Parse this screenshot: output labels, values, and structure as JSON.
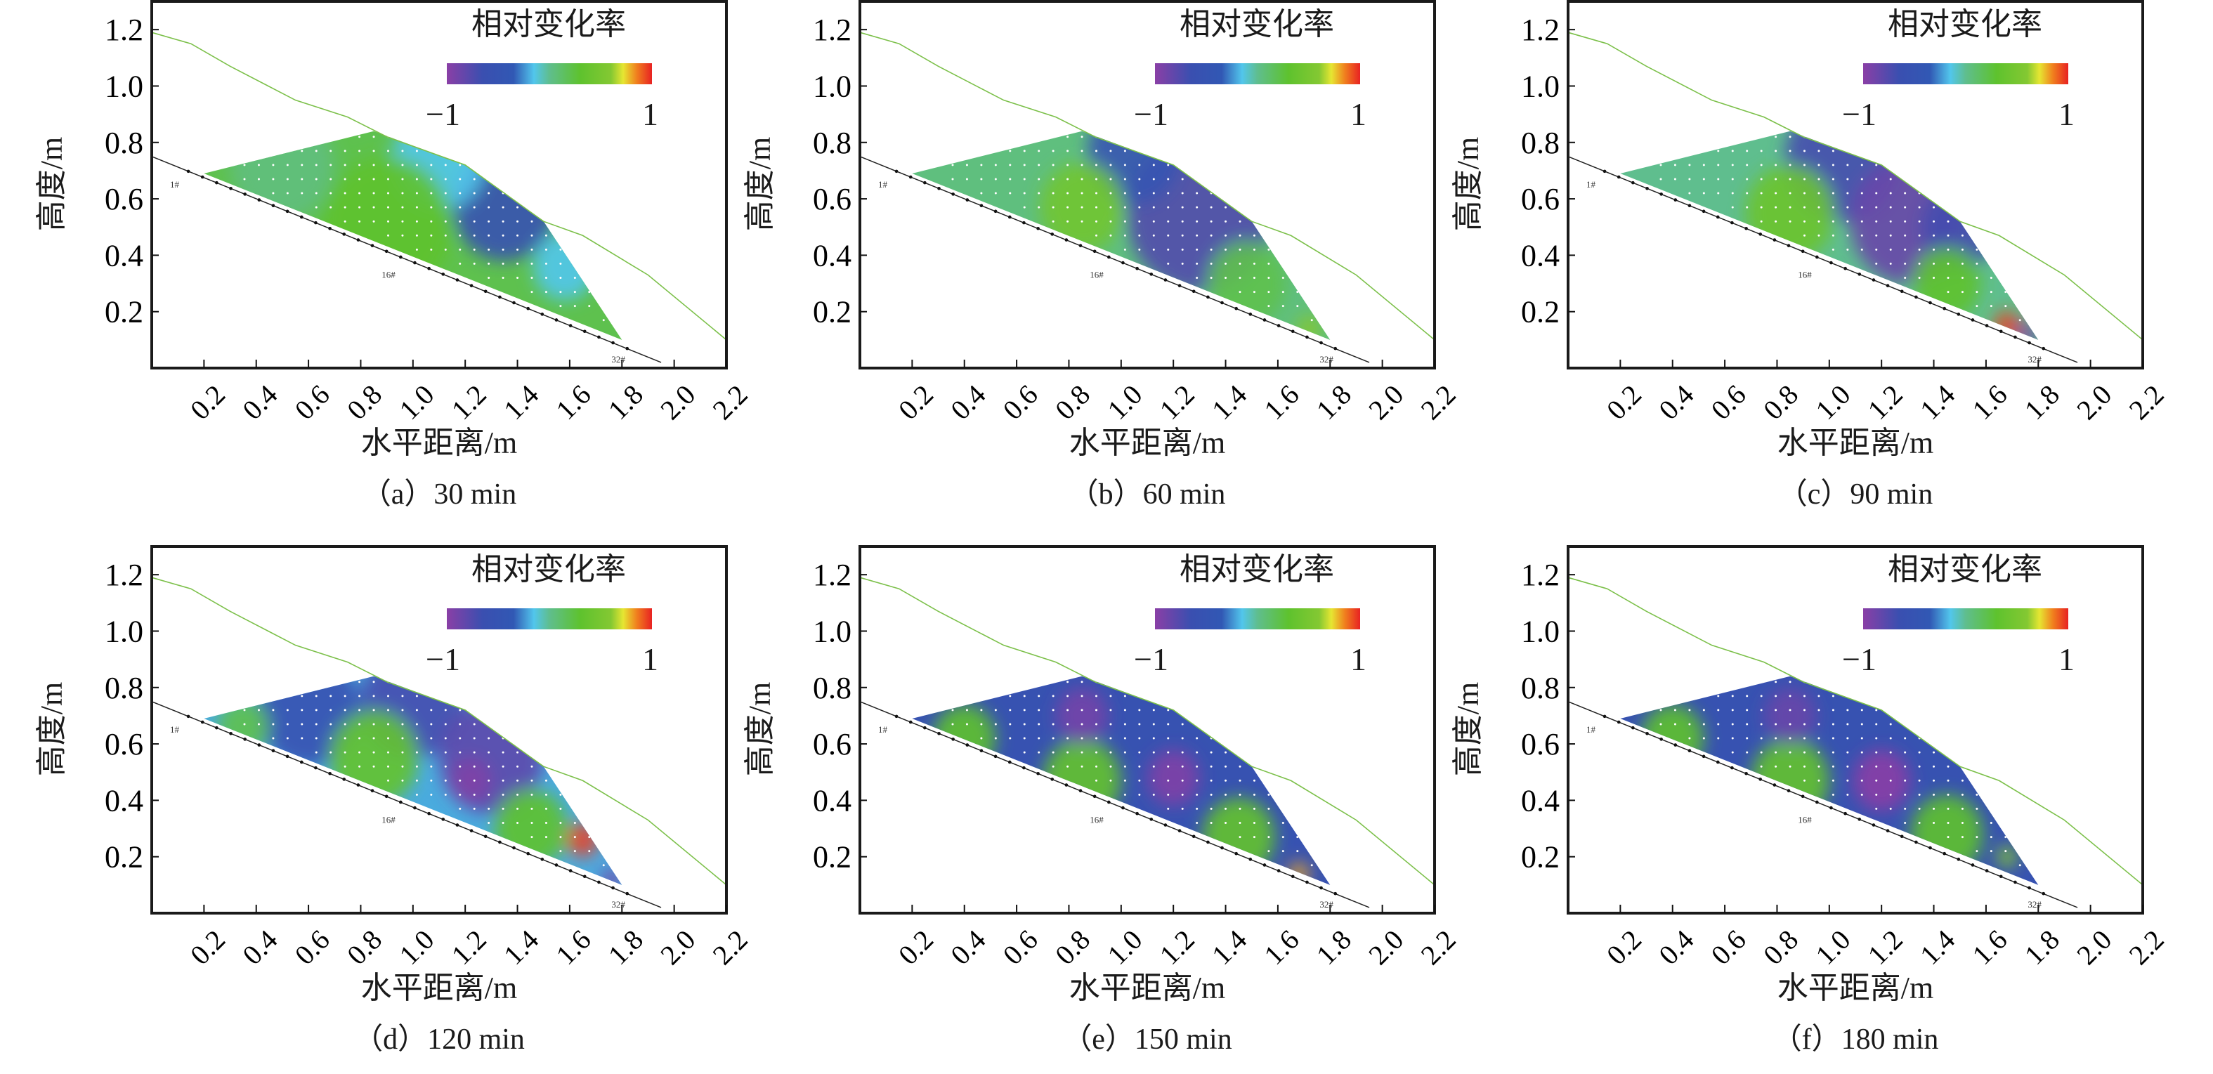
{
  "colorbar": {
    "title": "相对变化率",
    "min_label": "−1",
    "max_label": "1",
    "min": -1,
    "max": 1,
    "stops": [
      [
        -1,
        "#8a3fa6"
      ],
      [
        -0.65,
        "#3a4fb0"
      ],
      [
        -0.35,
        "#3158b4"
      ],
      [
        -0.15,
        "#52c6ec"
      ],
      [
        0.0,
        "#5fbe8e"
      ],
      [
        0.3,
        "#5ec22e"
      ],
      [
        0.6,
        "#84c832"
      ],
      [
        0.72,
        "#e6e632"
      ],
      [
        0.85,
        "#f0801e"
      ],
      [
        1,
        "#e82222"
      ]
    ]
  },
  "colors": {
    "ground_line": "#7cc04a",
    "base_line": "#222222",
    "frame": "#1a1a1a"
  },
  "chart_data": [
    {
      "type": "heatmap",
      "caption": "（a）30 min",
      "xlabel": "水平距离/m",
      "ylabel": "高度/m",
      "xlim": [
        0,
        2.2
      ],
      "ylim": [
        0,
        1.3
      ],
      "xticks": [
        "0.2",
        "0.4",
        "0.6",
        "0.8",
        "1.0",
        "1.2",
        "1.4",
        "1.6",
        "1.8",
        "2.0",
        "2.2"
      ],
      "yticks": [
        "0.2",
        "0.4",
        "0.6",
        "0.8",
        "1.0",
        "1.2"
      ],
      "point_labels": [
        "1#",
        "16#",
        "32#"
      ],
      "base_value": 0.2,
      "field": [
        {
          "x": 1.35,
          "y": 0.58,
          "v": -0.6,
          "r": 0.2
        },
        {
          "x": 1.1,
          "y": 0.74,
          "v": -0.15,
          "r": 0.18
        },
        {
          "x": 1.58,
          "y": 0.36,
          "v": -0.15,
          "r": 0.12
        },
        {
          "x": 0.9,
          "y": 0.5,
          "v": 0.3,
          "r": 0.25
        },
        {
          "x": 0.5,
          "y": 0.72,
          "v": 0.05,
          "r": 0.2
        }
      ]
    },
    {
      "type": "heatmap",
      "caption": "（b）60 min",
      "xlabel": "水平距离/m",
      "ylabel": "高度/m",
      "xlim": [
        0,
        2.2
      ],
      "ylim": [
        0,
        1.3
      ],
      "xticks": [
        "0.2",
        "0.4",
        "0.6",
        "0.8",
        "1.0",
        "1.2",
        "1.4",
        "1.6",
        "1.8",
        "2.0",
        "2.2"
      ],
      "yticks": [
        "0.2",
        "0.4",
        "0.6",
        "0.8",
        "1.0",
        "1.2"
      ],
      "point_labels": [
        "1#",
        "16#",
        "32#"
      ],
      "base_value": 0.05,
      "field": [
        {
          "x": 1.3,
          "y": 0.55,
          "v": -0.75,
          "r": 0.28
        },
        {
          "x": 1.05,
          "y": 0.76,
          "v": -0.5,
          "r": 0.18
        },
        {
          "x": 0.85,
          "y": 0.57,
          "v": 0.45,
          "r": 0.16
        },
        {
          "x": 1.48,
          "y": 0.3,
          "v": 0.2,
          "r": 0.15
        },
        {
          "x": 1.72,
          "y": 0.14,
          "v": 0.6,
          "r": 0.05
        }
      ]
    },
    {
      "type": "heatmap",
      "caption": "（c）90 min",
      "xlabel": "水平距离/m",
      "ylabel": "高度/m",
      "xlim": [
        0,
        2.2
      ],
      "ylim": [
        0,
        1.3
      ],
      "xticks": [
        "0.2",
        "0.4",
        "0.6",
        "0.8",
        "1.0",
        "1.2",
        "1.4",
        "1.6",
        "1.8",
        "2.0",
        "2.2"
      ],
      "yticks": [
        "0.2",
        "0.4",
        "0.6",
        "0.8",
        "1.0",
        "1.2"
      ],
      "point_labels": [
        "1#",
        "16#",
        "32#"
      ],
      "base_value": 0.0,
      "field": [
        {
          "x": 1.05,
          "y": 0.74,
          "v": -0.7,
          "r": 0.22
        },
        {
          "x": 1.3,
          "y": 0.52,
          "v": -0.85,
          "r": 0.22
        },
        {
          "x": 1.5,
          "y": 0.5,
          "v": -0.7,
          "r": 0.15
        },
        {
          "x": 0.85,
          "y": 0.55,
          "v": 0.4,
          "r": 0.17
        },
        {
          "x": 1.45,
          "y": 0.3,
          "v": 0.3,
          "r": 0.13
        },
        {
          "x": 1.68,
          "y": 0.15,
          "v": 0.95,
          "r": 0.05
        },
        {
          "x": 1.76,
          "y": 0.12,
          "v": -0.9,
          "r": 0.04
        }
      ]
    },
    {
      "type": "heatmap",
      "caption": "（d）120 min",
      "xlabel": "水平距离/m",
      "ylabel": "高度/m",
      "xlim": [
        0,
        2.2
      ],
      "ylim": [
        0,
        1.3
      ],
      "xticks": [
        "0.2",
        "0.4",
        "0.6",
        "0.8",
        "1.0",
        "1.2",
        "1.4",
        "1.6",
        "1.8",
        "2.0",
        "2.2"
      ],
      "yticks": [
        "0.2",
        "0.4",
        "0.6",
        "0.8",
        "1.0",
        "1.2"
      ],
      "point_labels": [
        "1#",
        "16#",
        "32#"
      ],
      "base_value": -0.2,
      "field": [
        {
          "x": 0.6,
          "y": 0.72,
          "v": -0.6,
          "r": 0.2
        },
        {
          "x": 1.0,
          "y": 0.75,
          "v": -0.7,
          "r": 0.2
        },
        {
          "x": 1.3,
          "y": 0.55,
          "v": -0.8,
          "r": 0.2
        },
        {
          "x": 1.22,
          "y": 0.47,
          "v": -0.95,
          "r": 0.08
        },
        {
          "x": 0.85,
          "y": 0.55,
          "v": 0.35,
          "r": 0.17
        },
        {
          "x": 0.35,
          "y": 0.66,
          "v": 0.2,
          "r": 0.1
        },
        {
          "x": 1.45,
          "y": 0.3,
          "v": 0.3,
          "r": 0.14
        },
        {
          "x": 1.65,
          "y": 0.26,
          "v": 0.95,
          "r": 0.06
        },
        {
          "x": 1.76,
          "y": 0.12,
          "v": -0.9,
          "r": 0.04
        }
      ]
    },
    {
      "type": "heatmap",
      "caption": "（e）150 min",
      "xlabel": "水平距离/m",
      "ylabel": "高度/m",
      "xlim": [
        0,
        2.2
      ],
      "ylim": [
        0,
        1.3
      ],
      "xticks": [
        "0.2",
        "0.4",
        "0.6",
        "0.8",
        "1.0",
        "1.2",
        "1.4",
        "1.6",
        "1.8",
        "2.0",
        "2.2"
      ],
      "yticks": [
        "0.2",
        "0.4",
        "0.6",
        "0.8",
        "1.0",
        "1.2"
      ],
      "point_labels": [
        "1#",
        "16#",
        "32#"
      ],
      "base_value": -0.55,
      "field": [
        {
          "x": 0.4,
          "y": 0.62,
          "v": 0.3,
          "r": 0.12
        },
        {
          "x": 0.85,
          "y": 0.47,
          "v": 0.35,
          "r": 0.15
        },
        {
          "x": 1.45,
          "y": 0.27,
          "v": 0.35,
          "r": 0.14
        },
        {
          "x": 0.85,
          "y": 0.7,
          "v": -0.9,
          "r": 0.1
        },
        {
          "x": 1.2,
          "y": 0.48,
          "v": -0.95,
          "r": 0.1
        },
        {
          "x": 1.68,
          "y": 0.14,
          "v": 0.8,
          "r": 0.04
        }
      ]
    },
    {
      "type": "heatmap",
      "caption": "（f）180 min",
      "xlabel": "水平距离/m",
      "ylabel": "高度/m",
      "xlim": [
        0,
        2.2
      ],
      "ylim": [
        0,
        1.3
      ],
      "xticks": [
        "0.2",
        "0.4",
        "0.6",
        "0.8",
        "1.0",
        "1.2",
        "1.4",
        "1.6",
        "1.8",
        "2.0",
        "2.2"
      ],
      "yticks": [
        "0.2",
        "0.4",
        "0.6",
        "0.8",
        "1.0",
        "1.2"
      ],
      "point_labels": [
        "1#",
        "16#",
        "32#"
      ],
      "base_value": -0.55,
      "field": [
        {
          "x": 0.4,
          "y": 0.62,
          "v": 0.3,
          "r": 0.12
        },
        {
          "x": 0.85,
          "y": 0.47,
          "v": 0.35,
          "r": 0.15
        },
        {
          "x": 1.45,
          "y": 0.28,
          "v": 0.3,
          "r": 0.14
        },
        {
          "x": 0.85,
          "y": 0.7,
          "v": -0.85,
          "r": 0.1
        },
        {
          "x": 1.2,
          "y": 0.47,
          "v": -1.0,
          "r": 0.11
        },
        {
          "x": 1.68,
          "y": 0.2,
          "v": 0.6,
          "r": 0.04
        }
      ]
    }
  ]
}
